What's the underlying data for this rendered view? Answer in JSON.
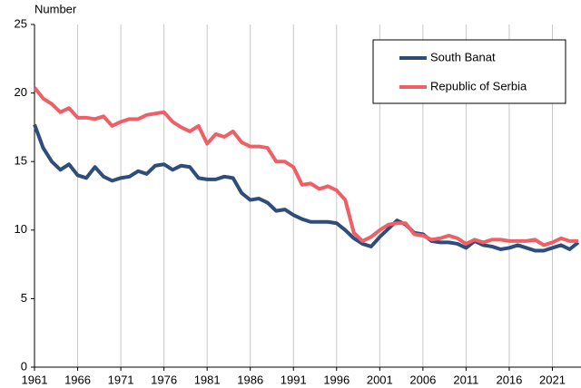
{
  "chart_data": {
    "type": "line",
    "y_label": "Number",
    "x": [
      1961,
      1962,
      1963,
      1964,
      1965,
      1966,
      1967,
      1968,
      1969,
      1970,
      1971,
      1972,
      1973,
      1974,
      1975,
      1976,
      1977,
      1978,
      1979,
      1980,
      1981,
      1982,
      1983,
      1984,
      1985,
      1986,
      1987,
      1988,
      1989,
      1990,
      1991,
      1992,
      1993,
      1994,
      1995,
      1996,
      1997,
      1998,
      1999,
      2000,
      2001,
      2002,
      2003,
      2004,
      2005,
      2006,
      2007,
      2008,
      2009,
      2010,
      2011,
      2012,
      2013,
      2014,
      2015,
      2016,
      2017,
      2018,
      2019,
      2020,
      2021,
      2022,
      2023,
      2024
    ],
    "series": [
      {
        "name": "South Banat",
        "color": "#2e4d7b",
        "values": [
          17.7,
          16.0,
          15.0,
          14.4,
          14.8,
          14.0,
          13.8,
          14.6,
          13.9,
          13.6,
          13.8,
          13.9,
          14.3,
          14.1,
          14.7,
          14.8,
          14.4,
          14.7,
          14.6,
          13.8,
          13.7,
          13.7,
          13.9,
          13.8,
          12.7,
          12.2,
          12.3,
          12.0,
          11.4,
          11.5,
          11.1,
          10.8,
          10.6,
          10.6,
          10.6,
          10.5,
          10.0,
          9.4,
          9.0,
          8.8,
          9.5,
          10.1,
          10.7,
          10.4,
          9.8,
          9.7,
          9.2,
          9.1,
          9.1,
          9.0,
          8.7,
          9.2,
          8.9,
          8.8,
          8.6,
          8.7,
          8.9,
          8.7,
          8.5,
          8.5,
          8.7,
          8.9,
          8.6,
          9.1
        ]
      },
      {
        "name": "Republic of Serbia",
        "color": "#ef5f66",
        "values": [
          20.4,
          19.6,
          19.2,
          18.6,
          18.9,
          18.2,
          18.2,
          18.1,
          18.3,
          17.6,
          17.9,
          18.1,
          18.1,
          18.4,
          18.5,
          18.6,
          17.9,
          17.5,
          17.2,
          17.6,
          16.3,
          17.0,
          16.8,
          17.2,
          16.4,
          16.1,
          16.1,
          16.0,
          15.0,
          15.0,
          14.6,
          13.3,
          13.4,
          13.0,
          13.2,
          12.9,
          12.2,
          9.8,
          9.2,
          9.5,
          10.0,
          10.4,
          10.5,
          10.5,
          9.7,
          9.6,
          9.3,
          9.4,
          9.6,
          9.4,
          9.0,
          9.3,
          9.1,
          9.3,
          9.3,
          9.2,
          9.2,
          9.2,
          9.3,
          8.9,
          9.1,
          9.4,
          9.2,
          9.2
        ]
      }
    ],
    "xlim": [
      1961,
      2024
    ],
    "xticks": [
      1961,
      1966,
      1971,
      1976,
      1981,
      1986,
      1991,
      1996,
      2001,
      2006,
      2011,
      2016,
      2021
    ],
    "ylim": [
      0,
      25
    ],
    "yticks": [
      0,
      5,
      10,
      15,
      20,
      25
    ],
    "x_grid": true,
    "legend": "upper right"
  }
}
